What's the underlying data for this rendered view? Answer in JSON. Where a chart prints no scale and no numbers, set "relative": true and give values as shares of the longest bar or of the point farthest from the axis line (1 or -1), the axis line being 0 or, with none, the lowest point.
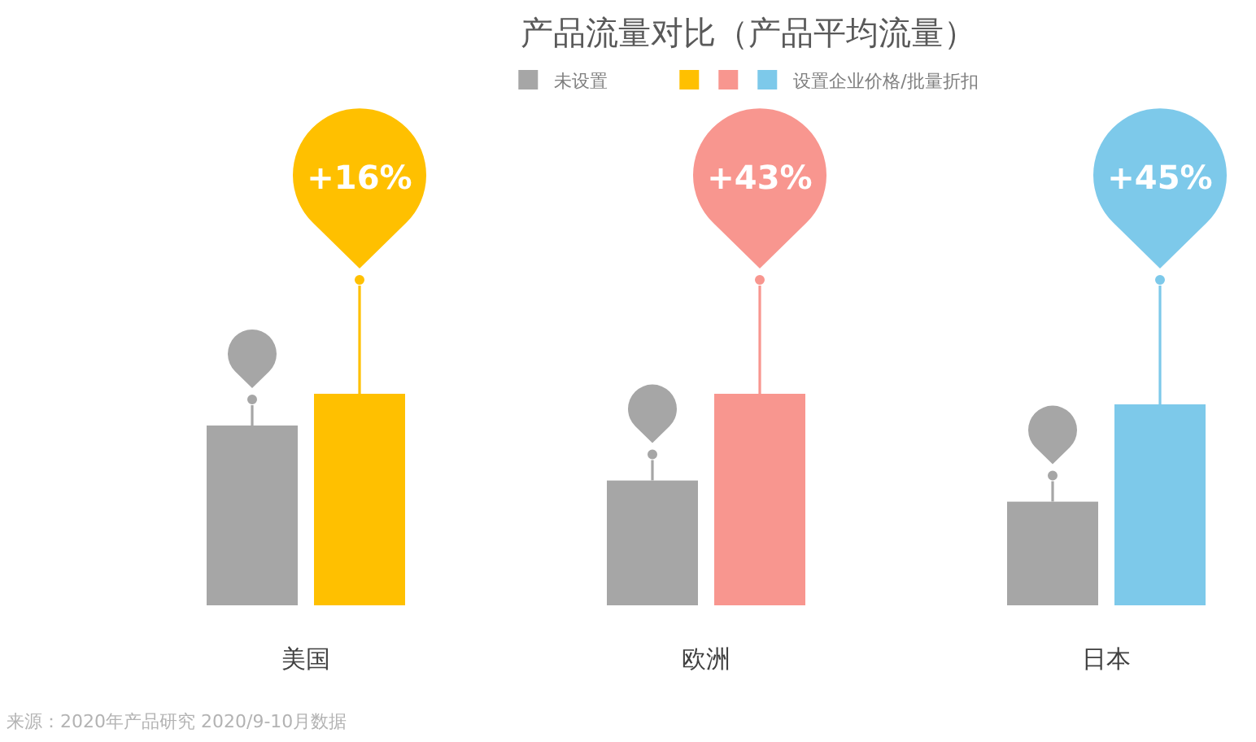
{
  "chart_data": {
    "type": "bar",
    "title": "产品流量对比（产品平均流量）",
    "categories": [
      "美国",
      "欧洲",
      "日本"
    ],
    "relative": true,
    "series": [
      {
        "name": "未设置",
        "color": "#a6a6a6",
        "values": [
          0.85,
          0.59,
          0.49
        ]
      },
      {
        "name": "设置企业价格/批量折扣",
        "colors": [
          "#ffc000",
          "#f8968f",
          "#7dc9ea"
        ],
        "values": [
          1,
          1,
          0.95
        ]
      }
    ],
    "legend": "top",
    "annotations": [
      "+16%",
      "+43%",
      "+45%",
      "来源：2020年产品研究 2020/9-10月数据"
    ]
  }
}
